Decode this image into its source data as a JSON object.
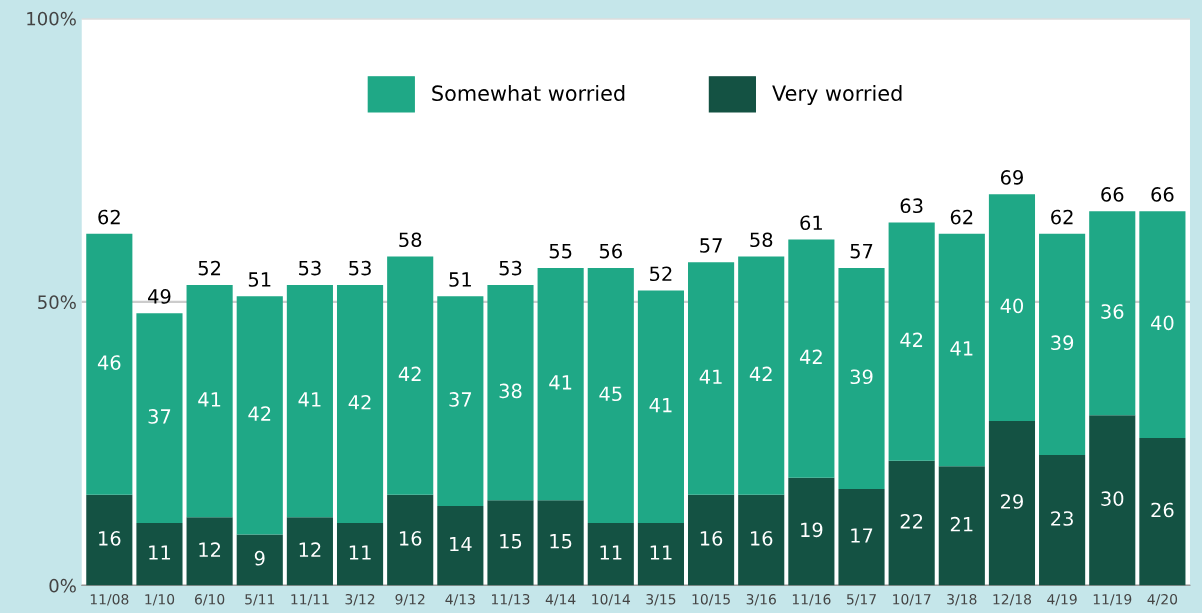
{
  "chart_data": {
    "type": "bar",
    "stacked": true,
    "categories": [
      "11/08",
      "1/10",
      "6/10",
      "5/11",
      "11/11",
      "3/12",
      "9/12",
      "4/13",
      "11/13",
      "4/14",
      "10/14",
      "3/15",
      "10/15",
      "3/16",
      "11/16",
      "5/17",
      "10/17",
      "3/18",
      "12/18",
      "4/19",
      "11/19",
      "4/20"
    ],
    "series": [
      {
        "name": "Very worried",
        "color": "#145243",
        "values": [
          16,
          11,
          12,
          9,
          12,
          11,
          16,
          14,
          15,
          15,
          11,
          11,
          16,
          16,
          19,
          17,
          22,
          21,
          29,
          23,
          30,
          26
        ]
      },
      {
        "name": "Somewhat worried",
        "color": "#1fa886",
        "values": [
          46,
          37,
          41,
          42,
          41,
          42,
          42,
          37,
          38,
          41,
          45,
          41,
          41,
          42,
          42,
          39,
          42,
          41,
          40,
          39,
          36,
          40
        ]
      }
    ],
    "totals": [
      "62",
      "49",
      "52",
      "51",
      "53",
      "53",
      "58",
      "51",
      "53",
      "55",
      "56",
      "52",
      "57",
      "58",
      "61",
      "57",
      "63",
      "62",
      "69",
      "62",
      "66",
      "66"
    ],
    "data_labels": true,
    "ylim": [
      0,
      100
    ],
    "yticks": [
      {
        "value": 0,
        "label": "0%"
      },
      {
        "value": 50,
        "label": "50%"
      },
      {
        "value": 100,
        "label": "100%"
      }
    ],
    "grid": "y",
    "legend": "top"
  }
}
